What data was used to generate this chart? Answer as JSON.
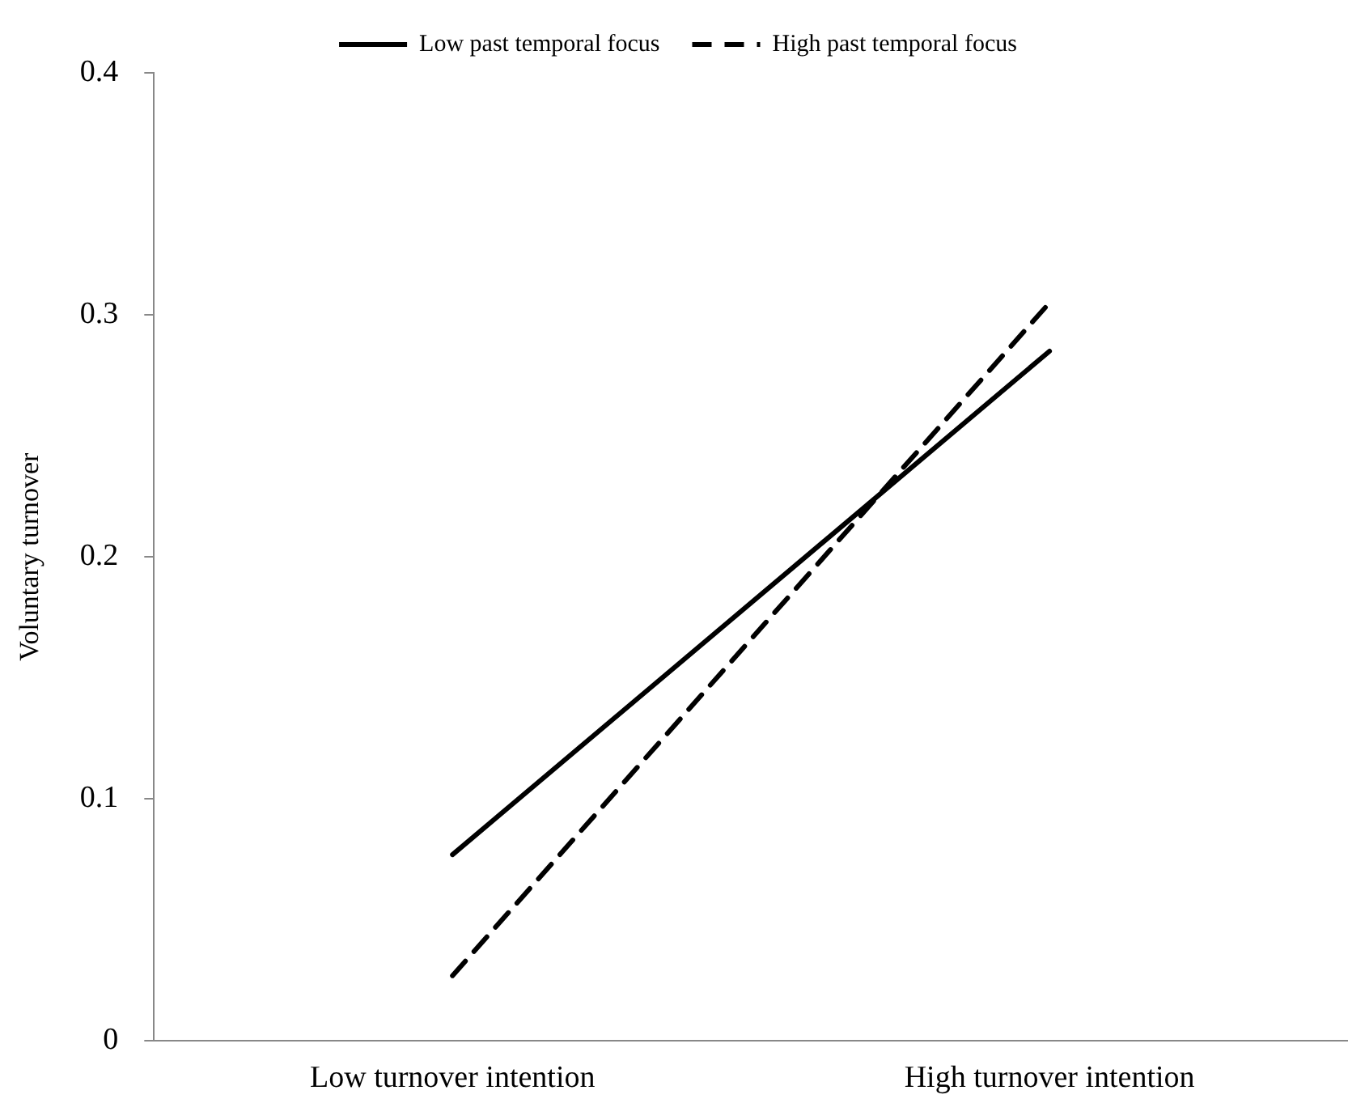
{
  "chart_data": {
    "type": "line",
    "ylabel": "Voluntary turnover",
    "categories": [
      "Low turnover intention",
      "High turnover intention"
    ],
    "series": [
      {
        "name": "Low past temporal focus",
        "color": "#000000",
        "line_style": "solid",
        "values": [
          0.077,
          0.285
        ]
      },
      {
        "name": "High past temporal focus",
        "color": "#000000",
        "line_style": "dashed",
        "values": [
          0.027,
          0.305
        ]
      }
    ],
    "ylim": [
      0,
      0.4
    ],
    "yticks": [
      0,
      0.1,
      0.2,
      0.3,
      0.4
    ],
    "grid": false,
    "legend": "top",
    "marker": "none"
  }
}
